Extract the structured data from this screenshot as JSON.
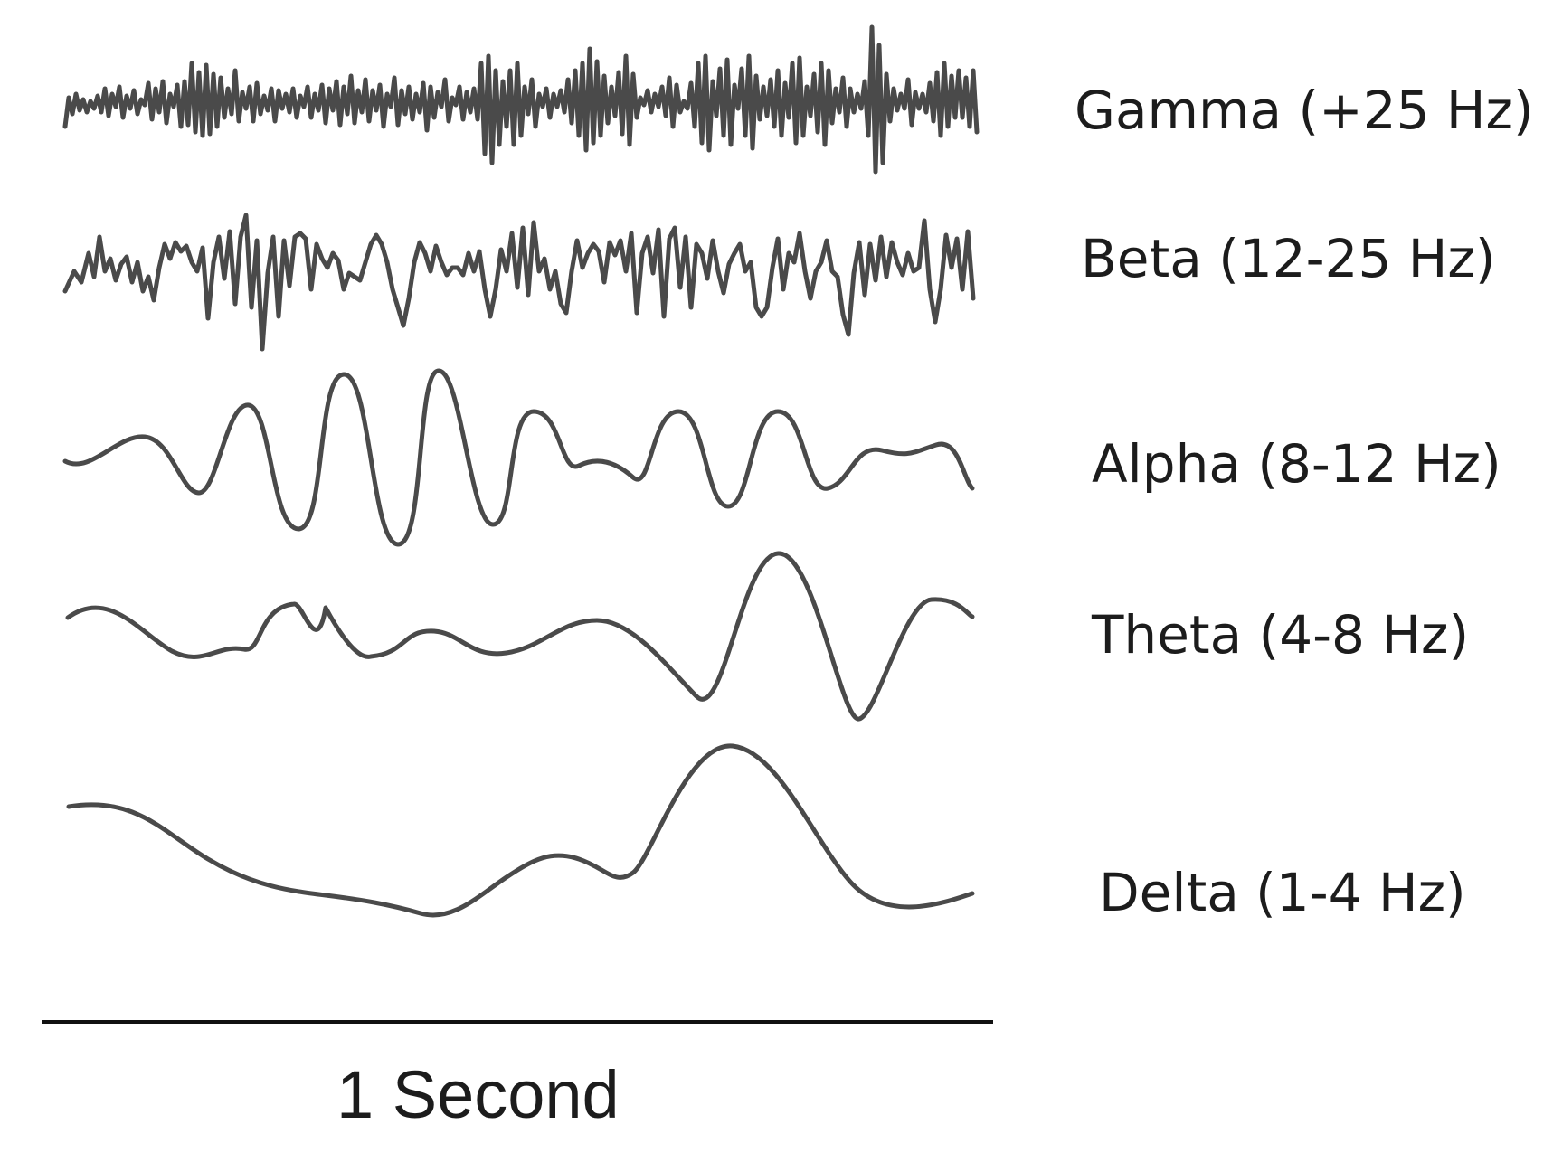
{
  "bands": [
    {
      "key": "gamma",
      "label": "Gamma (+25 Hz)"
    },
    {
      "key": "beta",
      "label": "Beta (12-25 Hz)"
    },
    {
      "key": "alpha",
      "label": "Alpha (8-12 Hz)"
    },
    {
      "key": "theta",
      "label": "Theta (4-8 Hz)"
    },
    {
      "key": "delta",
      "label": "Delta (1-4 Hz)"
    }
  ],
  "scale": {
    "label": "1 Second"
  },
  "colors": {
    "waveform": "#4a4a4a",
    "text": "#1c1c1c",
    "scale_bar": "#111111",
    "background": "#ffffff"
  }
}
